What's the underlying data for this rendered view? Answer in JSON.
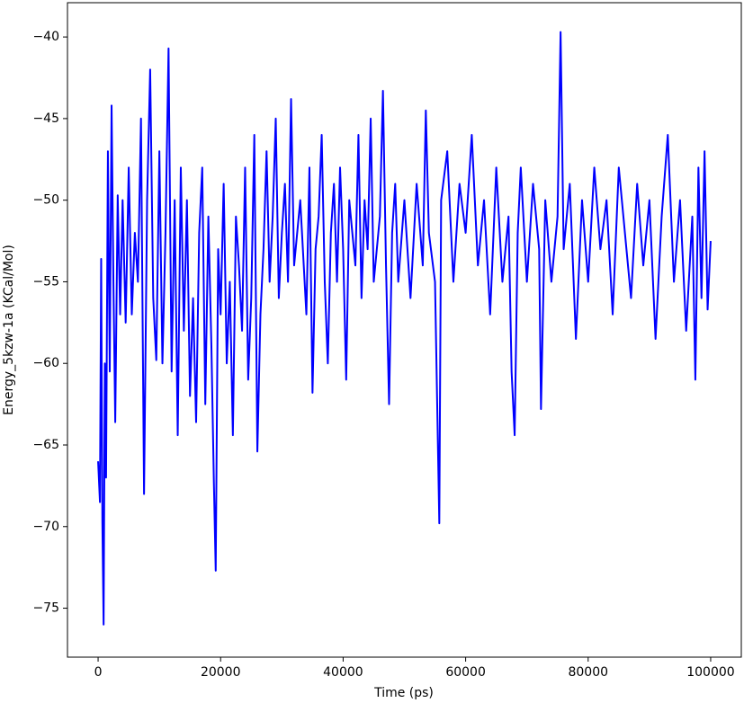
{
  "chart_data": {
    "type": "line",
    "x_label": "Time (ps)",
    "y_label": "Energy_5kzw-1a (KCal/Mol)",
    "xlim": [
      -5000,
      105000
    ],
    "ylim": [
      -78,
      -37.9
    ],
    "xticks": [
      0,
      20000,
      40000,
      60000,
      80000,
      100000
    ],
    "yticks": [
      {
        "value": -75,
        "label": "−75"
      },
      {
        "value": -70,
        "label": "−70"
      },
      {
        "value": -65,
        "label": "−65"
      },
      {
        "value": -60,
        "label": "−60"
      },
      {
        "value": -55,
        "label": "−55"
      },
      {
        "value": -50,
        "label": "−50"
      },
      {
        "value": -45,
        "label": "−45"
      },
      {
        "value": -40,
        "label": "−40"
      }
    ],
    "x": [
      0,
      300,
      500,
      700,
      900,
      1100,
      1300,
      1600,
      1900,
      2200,
      2500,
      2800,
      3200,
      3600,
      4000,
      4500,
      5000,
      5500,
      6000,
      6500,
      7000,
      7500,
      8000,
      8500,
      9000,
      9500,
      10000,
      10500,
      11000,
      11500,
      12000,
      12500,
      13000,
      13500,
      14000,
      14500,
      15000,
      15500,
      16000,
      16500,
      17000,
      17500,
      18000,
      18500,
      18900,
      19200,
      19600,
      20000,
      20500,
      21000,
      21500,
      22000,
      22500,
      23000,
      23500,
      24000,
      24500,
      25000,
      25500,
      26000,
      26500,
      27000,
      27500,
      28000,
      28500,
      29000,
      29500,
      30000,
      30500,
      31000,
      31500,
      32000,
      33000,
      34000,
      34500,
      35000,
      35500,
      36000,
      36500,
      37000,
      37500,
      38000,
      38500,
      39000,
      39500,
      40000,
      40500,
      41000,
      42000,
      42500,
      43000,
      43500,
      44000,
      44500,
      45000,
      46000,
      46500,
      47000,
      47500,
      48000,
      48500,
      49000,
      50000,
      51000,
      52000,
      53000,
      53500,
      54000,
      55000,
      55700,
      56000,
      57000,
      58000,
      59000,
      60000,
      61000,
      62000,
      63000,
      64000,
      65000,
      66000,
      67000,
      67500,
      68000,
      68500,
      69000,
      70000,
      71000,
      72000,
      72300,
      73000,
      74000,
      75000,
      75500,
      76000,
      77000,
      78000,
      79000,
      80000,
      81000,
      82000,
      83000,
      84000,
      85000,
      86000,
      87000,
      88000,
      89000,
      90000,
      91000,
      92000,
      93000,
      94000,
      95000,
      96000,
      97000,
      97500,
      98000,
      98500,
      99000,
      99500,
      100000
    ],
    "series": [
      {
        "name": "Energy",
        "color": "#0000ff",
        "values": [
          -66,
          -68.5,
          -53.6,
          -69.7,
          -76,
          -60,
          -67,
          -47,
          -60.5,
          -44.2,
          -55,
          -63.6,
          -49.7,
          -57,
          -50,
          -57.5,
          -48,
          -57,
          -52,
          -55,
          -45,
          -68,
          -50,
          -42,
          -56,
          -59.8,
          -47,
          -60,
          -52,
          -40.7,
          -60.5,
          -50,
          -64.4,
          -48,
          -58,
          -50,
          -62,
          -56,
          -63.6,
          -52,
          -48,
          -62.5,
          -51,
          -59,
          -67.3,
          -72.7,
          -53,
          -57,
          -49,
          -60,
          -55,
          -64.4,
          -51,
          -54,
          -58,
          -48,
          -61,
          -56,
          -46,
          -65.4,
          -57,
          -53,
          -47,
          -55,
          -51,
          -45,
          -56,
          -52,
          -49,
          -55,
          -43.8,
          -54,
          -50,
          -57,
          -48,
          -61.8,
          -53,
          -51,
          -46,
          -55,
          -60,
          -52,
          -49,
          -55,
          -48,
          -53,
          -61,
          -50,
          -54,
          -46,
          -56,
          -50,
          -53,
          -45,
          -55,
          -51,
          -43.3,
          -54,
          -62.5,
          -52,
          -49,
          -55,
          -50,
          -56,
          -49,
          -54,
          -44.5,
          -52,
          -55,
          -69.8,
          -50,
          -47,
          -55,
          -49,
          -52,
          -46,
          -54,
          -50,
          -57,
          -48,
          -55,
          -51,
          -60.5,
          -64.4,
          -52,
          -48,
          -55,
          -49,
          -53,
          -62.8,
          -50,
          -55,
          -51,
          -39.7,
          -53,
          -49,
          -58.5,
          -50,
          -55,
          -48,
          -53,
          -50,
          -57,
          -48,
          -52,
          -56,
          -49,
          -54,
          -50,
          -58.5,
          -51,
          -46,
          -55,
          -50,
          -58,
          -51,
          -61,
          -48,
          -56,
          -47,
          -56.7,
          -52.5
        ]
      }
    ]
  }
}
